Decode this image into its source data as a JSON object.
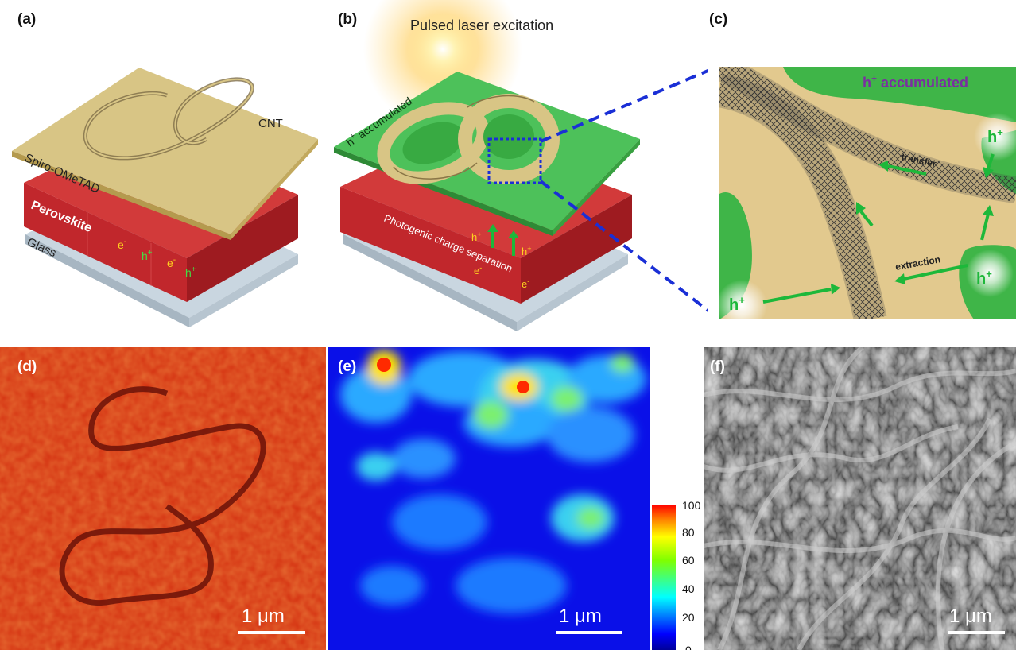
{
  "panels": {
    "a": {
      "label": "(a)",
      "layers": {
        "cnt": "CNT",
        "spiro": "Spiro-OMeTAD",
        "perovskite": "Perovskite",
        "glass": "Glass"
      },
      "charges": {
        "electron": "e",
        "hole": "h",
        "minus": "-",
        "plus": "+"
      }
    },
    "b": {
      "label": "(b)",
      "title": "Pulsed laser excitation",
      "accumulated": "h",
      "accumulated_suffix": " accumulated",
      "separation": "Photogenic charge separation",
      "charges": {
        "electron": "e",
        "hole": "h",
        "minus": "-",
        "plus": "+"
      }
    },
    "c": {
      "label": "(c)",
      "accumulated": "h",
      "accumulated_suffix": " accumulated",
      "transfer": "transfer",
      "extraction": "extraction",
      "hole": "h",
      "plus": "+"
    },
    "d": {
      "label": "(d)",
      "scalebar": "1 μm"
    },
    "e": {
      "label": "(e)",
      "scalebar": "1 μm",
      "colorbar_ticks": [
        "100",
        "80",
        "60",
        "40",
        "20",
        "0"
      ]
    },
    "f": {
      "label": "(f)",
      "scalebar": "1 μm"
    }
  },
  "colors": {
    "perovskite": "#c8262a",
    "cnt_layer": "#d6c27e",
    "green": "#2fa83a",
    "glass": "#c6d4df",
    "hole_arrow": "#1db83a",
    "dashed": "#1a2fd6",
    "c_text": "#7a2fa0"
  }
}
